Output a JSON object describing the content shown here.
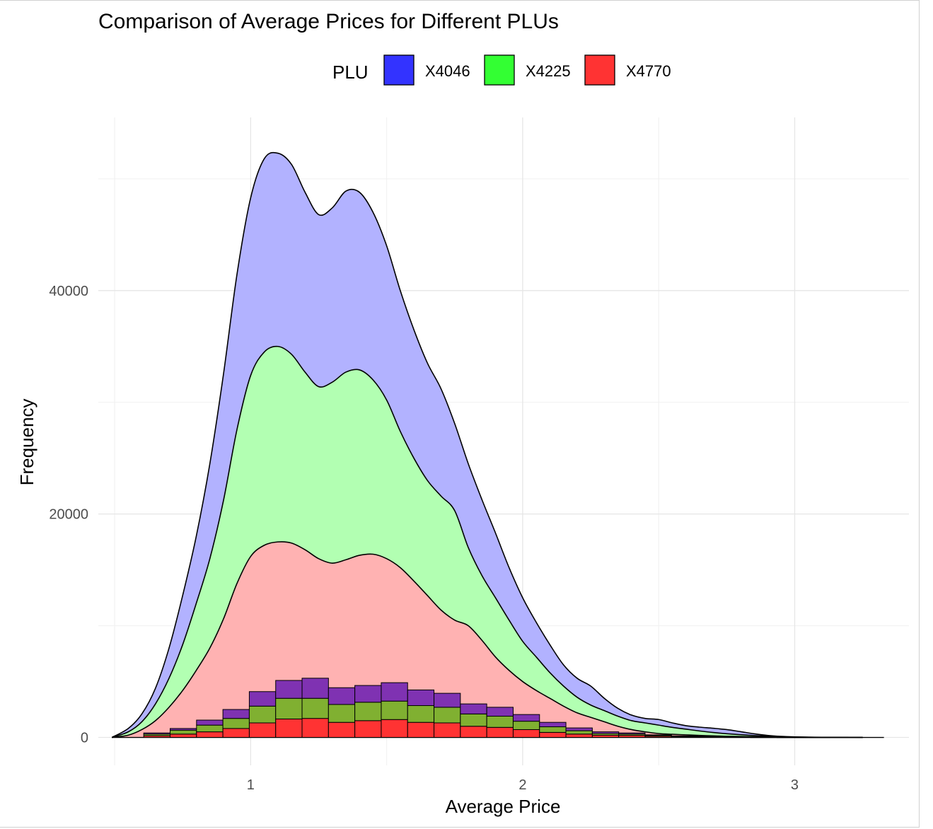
{
  "chart_data": {
    "type": "area",
    "subtype": "stacked density with stacked histogram overlay",
    "title": "Comparison of Average Prices for Different PLUs",
    "xlabel": "Average Price",
    "ylabel": "Frequency",
    "xlim": [
      0.44,
      3.42
    ],
    "ylim": [
      -2500,
      55500
    ],
    "x_ticks": [
      1,
      2,
      3
    ],
    "y_ticks": [
      0,
      20000,
      40000
    ],
    "x_tick_labels": [
      "1",
      "2",
      "3"
    ],
    "y_tick_labels": [
      "0",
      "20000",
      "40000"
    ],
    "grid": true,
    "legend": {
      "title": "PLU",
      "position": "top",
      "entries": [
        {
          "label": "X4046",
          "color": "#3333ff"
        },
        {
          "label": "X4225",
          "color": "#33ff33"
        },
        {
          "label": "X4770",
          "color": "#ff3333"
        }
      ]
    },
    "density_x": [
      0.49,
      0.55,
      0.6,
      0.65,
      0.7,
      0.75,
      0.8,
      0.85,
      0.9,
      0.95,
      1.0,
      1.05,
      1.1,
      1.15,
      1.2,
      1.25,
      1.3,
      1.35,
      1.4,
      1.45,
      1.5,
      1.55,
      1.6,
      1.65,
      1.7,
      1.75,
      1.8,
      1.85,
      1.9,
      1.95,
      2.0,
      2.05,
      2.1,
      2.15,
      2.2,
      2.25,
      2.3,
      2.35,
      2.4,
      2.45,
      2.5,
      2.55,
      2.6,
      2.65,
      2.7,
      2.75,
      2.8,
      2.85,
      2.9,
      2.95,
      3.0,
      3.05,
      3.1,
      3.15,
      3.2,
      3.25
    ],
    "density_series": [
      {
        "name": "X4770",
        "color": "#ff3333",
        "fill": "#ffb2b2",
        "values": [
          0,
          200,
          700,
          1500,
          2700,
          4200,
          6000,
          8000,
          10600,
          13800,
          16200,
          17200,
          17500,
          17400,
          16800,
          16000,
          15600,
          15900,
          16300,
          16400,
          16000,
          15200,
          14000,
          12700,
          11400,
          10500,
          10000,
          8700,
          7200,
          6000,
          5000,
          4200,
          3500,
          2800,
          2200,
          1800,
          1400,
          1000,
          700,
          500,
          350,
          280,
          230,
          180,
          140,
          100,
          80,
          60,
          40,
          25,
          15,
          8,
          4,
          2,
          1,
          0
        ]
      },
      {
        "name": "X4225",
        "color": "#33ff33",
        "fill": "#b2ffb2",
        "values": [
          0,
          500,
          1400,
          3000,
          5300,
          8300,
          12000,
          16000,
          21200,
          27600,
          32400,
          34500,
          35000,
          34300,
          32700,
          31400,
          31800,
          32700,
          32900,
          32000,
          30200,
          27400,
          25000,
          23000,
          21600,
          20300,
          17000,
          14500,
          12500,
          10500,
          8600,
          7200,
          5800,
          4600,
          3600,
          2900,
          2400,
          1900,
          1500,
          1300,
          1100,
          900,
          740,
          580,
          440,
          330,
          240,
          170,
          110,
          70,
          35,
          18,
          8,
          4,
          2,
          0
        ]
      },
      {
        "name": "X4046",
        "color": "#3333ff",
        "fill": "#b2b2ff",
        "values": [
          0,
          800,
          2100,
          4400,
          8000,
          12700,
          18000,
          24500,
          32500,
          41500,
          48300,
          51800,
          52300,
          51300,
          48800,
          46800,
          47400,
          48900,
          48800,
          47000,
          44000,
          40000,
          36500,
          33500,
          31200,
          28100,
          24500,
          21300,
          18300,
          15200,
          12500,
          10300,
          8300,
          6500,
          5300,
          4600,
          3500,
          2600,
          2000,
          1700,
          1600,
          1300,
          1050,
          920,
          820,
          700,
          520,
          330,
          180,
          90,
          45,
          22,
          10,
          5,
          2,
          0
        ]
      }
    ],
    "histogram": {
      "bin_width": 0.097,
      "bin_starts": [
        0.51,
        0.607,
        0.704,
        0.801,
        0.898,
        0.995,
        1.092,
        1.189,
        1.286,
        1.383,
        1.48,
        1.577,
        1.674,
        1.771,
        1.868,
        1.965,
        2.062,
        2.159,
        2.256,
        2.353,
        2.45,
        2.547,
        2.644,
        2.741,
        2.838,
        2.935,
        3.032
      ],
      "series": [
        {
          "name": "X4770",
          "color": "#ff3333",
          "values": [
            0,
            150,
            300,
            500,
            800,
            1300,
            1650,
            1700,
            1350,
            1500,
            1600,
            1350,
            1300,
            1000,
            900,
            700,
            450,
            300,
            200,
            180,
            100,
            60,
            40,
            25,
            15,
            8,
            3
          ]
        },
        {
          "name": "X4225",
          "color": "#80b031",
          "values": [
            0,
            150,
            350,
            600,
            900,
            1500,
            1850,
            1800,
            1600,
            1650,
            1650,
            1500,
            1400,
            1100,
            1000,
            750,
            500,
            300,
            150,
            120,
            80,
            50,
            30,
            20,
            12,
            6,
            2
          ]
        },
        {
          "name": "X4046",
          "color": "#7f32b2",
          "values": [
            0,
            100,
            150,
            450,
            800,
            1300,
            1600,
            1800,
            1500,
            1500,
            1650,
            1400,
            1250,
            900,
            800,
            600,
            400,
            250,
            150,
            100,
            50,
            30,
            20,
            12,
            8,
            4,
            1
          ]
        }
      ]
    }
  }
}
